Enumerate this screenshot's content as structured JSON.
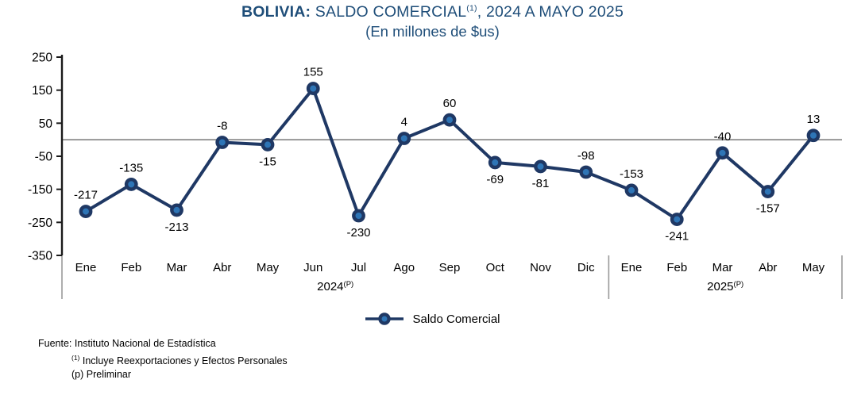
{
  "title": {
    "bold": "BOLIVIA:",
    "main": " SALDO COMERCIAL",
    "sup": "(1)",
    "tail": ", 2024 A MAYO 2025",
    "subtitle": "(En millones de $us)",
    "color": "#1F4E79"
  },
  "chart_data": {
    "type": "line",
    "categories": [
      "Ene",
      "Feb",
      "Mar",
      "Abr",
      "May",
      "Jun",
      "Jul",
      "Ago",
      "Sep",
      "Oct",
      "Nov",
      "Dic",
      "Ene",
      "Feb",
      "Mar",
      "Abr",
      "May"
    ],
    "series": [
      {
        "name": "Saldo Comercial",
        "values": [
          -217,
          -135,
          -213,
          -8,
          -15,
          155,
          -230,
          4,
          60,
          -69,
          -81,
          -98,
          -153,
          -241,
          -40,
          -157,
          13
        ]
      }
    ],
    "year_groups": [
      {
        "label": "2024",
        "sup": "(P)",
        "start": 0,
        "end": 11
      },
      {
        "label": "2025",
        "sup": "(P)",
        "start": 12,
        "end": 16
      }
    ],
    "y_ticks": [
      250,
      150,
      50,
      -50,
      -150,
      -250,
      -350
    ],
    "ylim": [
      -350,
      250
    ],
    "xlabel": "",
    "ylabel": "",
    "grid": "zero-line-only",
    "zero_line": true,
    "legend_position": "bottom",
    "label_position": [
      "above",
      "above",
      "below",
      "above",
      "below",
      "above",
      "below",
      "above",
      "above",
      "below",
      "below",
      "above",
      "above",
      "below",
      "above",
      "below",
      "above"
    ],
    "colors": {
      "line": "#1F3864",
      "marker_fill": "#2E75B6",
      "marker_stroke": "#1F3864",
      "zero_line": "#808080",
      "separator": "#999999",
      "axis": "#1a1a1a",
      "label": "#000000"
    }
  },
  "footer": {
    "source": "Fuente: Instituto Nacional de Estadística",
    "note1_sup": "(1)",
    "note1": "Incluye Reexportaciones y Efectos Personales",
    "note2": "(p) Preliminar"
  }
}
